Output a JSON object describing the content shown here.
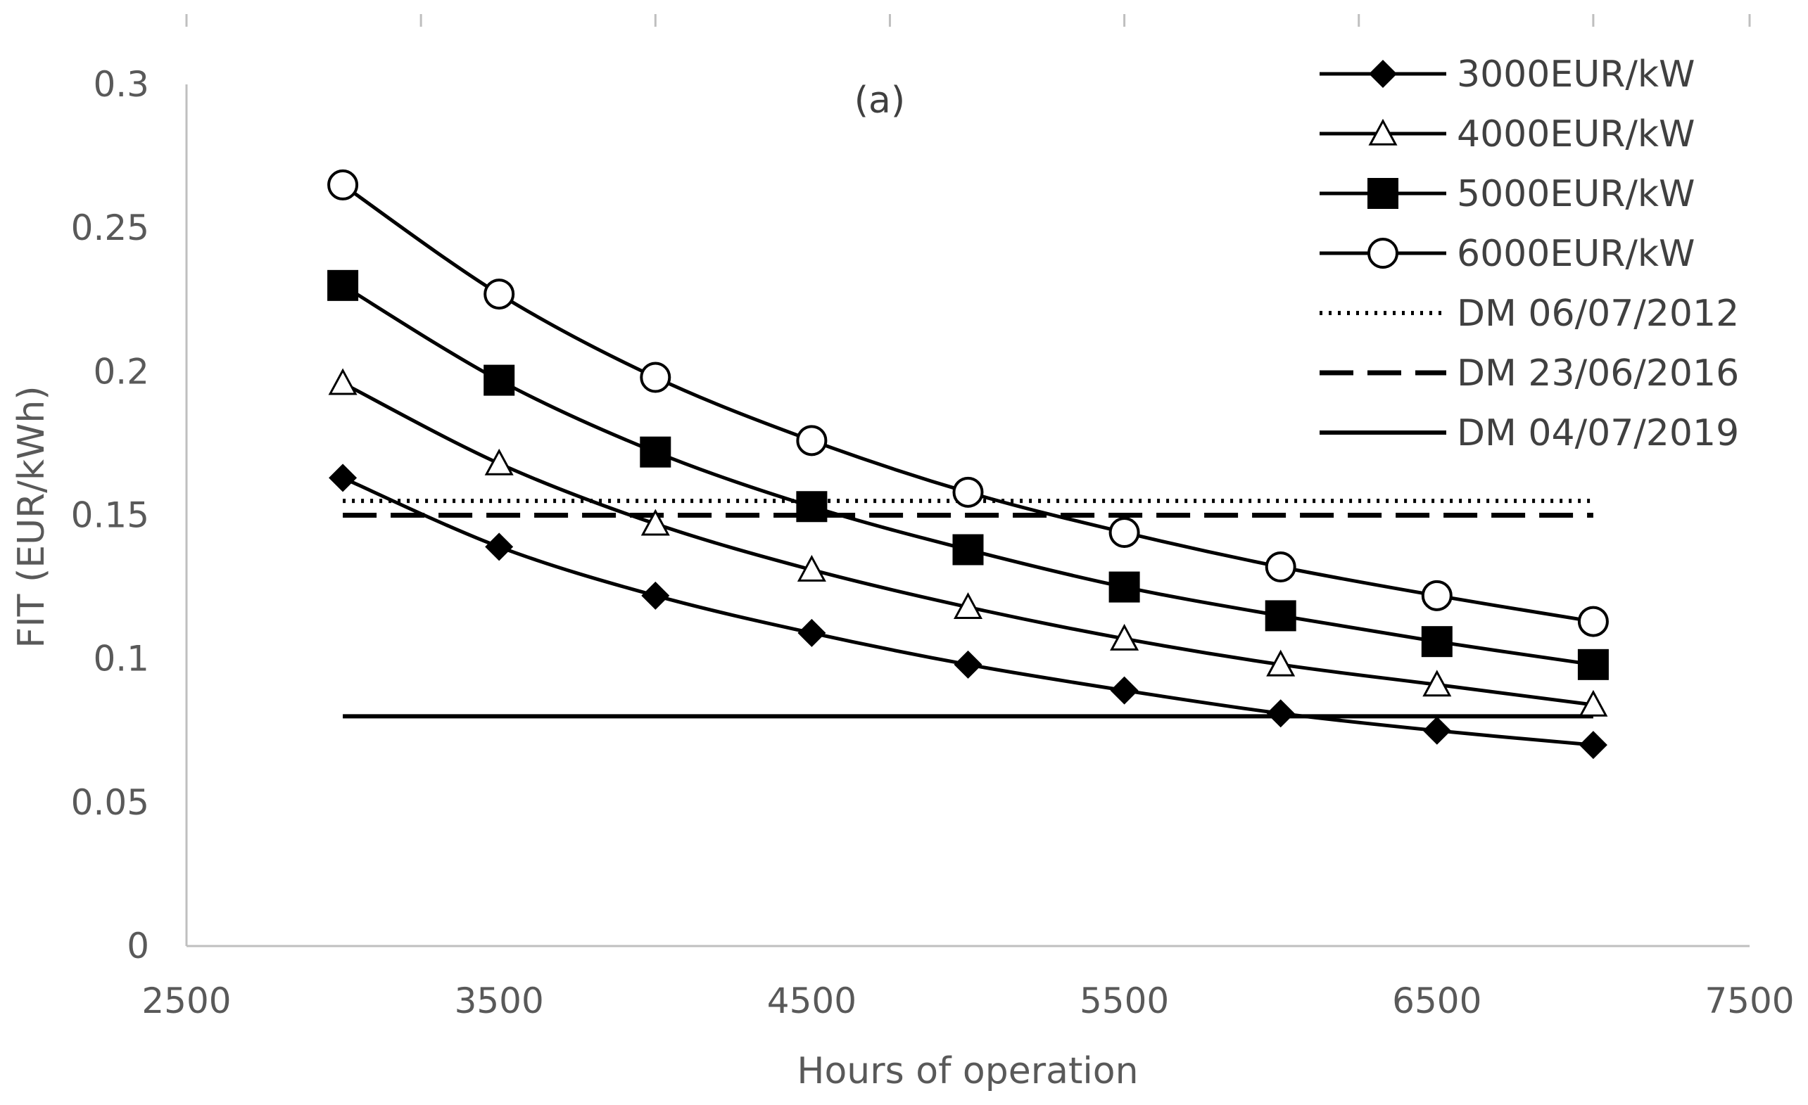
{
  "chart_data": {
    "type": "line",
    "title": "(a)",
    "xlabel": "Hours of operation",
    "ylabel": "FIT (EUR/kWh)",
    "xlim": [
      2500,
      7500
    ],
    "ylim": [
      0,
      0.3
    ],
    "xticks": [
      2500,
      3500,
      4500,
      5500,
      6500,
      7500
    ],
    "yticks": [
      0,
      0.05,
      0.1,
      0.15,
      0.2,
      0.25,
      0.3
    ],
    "xtick_labels": [
      "2500",
      "3500",
      "4500",
      "5500",
      "6500",
      "7500"
    ],
    "ytick_labels": [
      "0",
      "0.05",
      "0.1",
      "0.15",
      "0.2",
      "0.25",
      "0.3"
    ],
    "top_axis_ticks": [
      2500,
      3250,
      4000,
      4750,
      5500,
      6250,
      7000,
      7500
    ],
    "grid": false,
    "legend_position": "top-right",
    "x": [
      3000,
      3500,
      4000,
      4500,
      5000,
      5500,
      6000,
      6500,
      7000
    ],
    "series": [
      {
        "name": "3000EUR/kW",
        "marker": "diamond",
        "values": [
          0.163,
          0.139,
          0.122,
          0.109,
          0.098,
          0.089,
          0.081,
          0.075,
          0.07
        ]
      },
      {
        "name": "4000EUR/kW",
        "marker": "triangle-open",
        "values": [
          0.196,
          0.168,
          0.147,
          0.131,
          0.118,
          0.107,
          0.098,
          0.091,
          0.084
        ]
      },
      {
        "name": "5000EUR/kW",
        "marker": "square",
        "values": [
          0.23,
          0.197,
          0.172,
          0.153,
          0.138,
          0.125,
          0.115,
          0.106,
          0.098
        ]
      },
      {
        "name": "6000EUR/kW",
        "marker": "circle-open",
        "values": [
          0.265,
          0.227,
          0.198,
          0.176,
          0.158,
          0.144,
          0.132,
          0.122,
          0.113
        ]
      }
    ],
    "reference_lines": [
      {
        "name": "DM 06/07/2012",
        "style": "dotted",
        "y": 0.155,
        "x_range": [
          3000,
          7000
        ]
      },
      {
        "name": "DM 23/06/2016",
        "style": "dashed",
        "y": 0.15,
        "x_range": [
          3000,
          7000
        ]
      },
      {
        "name": "DM 04/07/2019",
        "style": "solid",
        "y": 0.08,
        "x_range": [
          3000,
          7000
        ]
      }
    ]
  }
}
